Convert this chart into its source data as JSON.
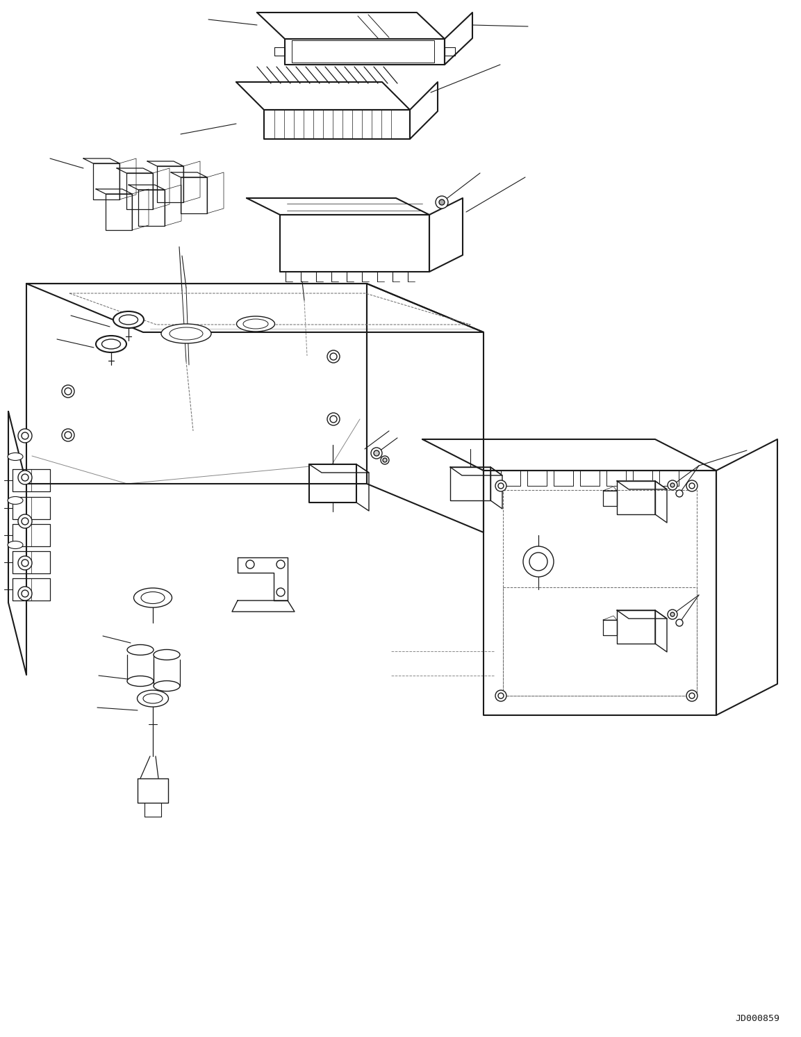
{
  "background_color": "#ffffff",
  "line_color": "#1a1a1a",
  "diagram_code": "JD000859",
  "fig_width": 11.53,
  "fig_height": 14.92,
  "dpi": 100
}
